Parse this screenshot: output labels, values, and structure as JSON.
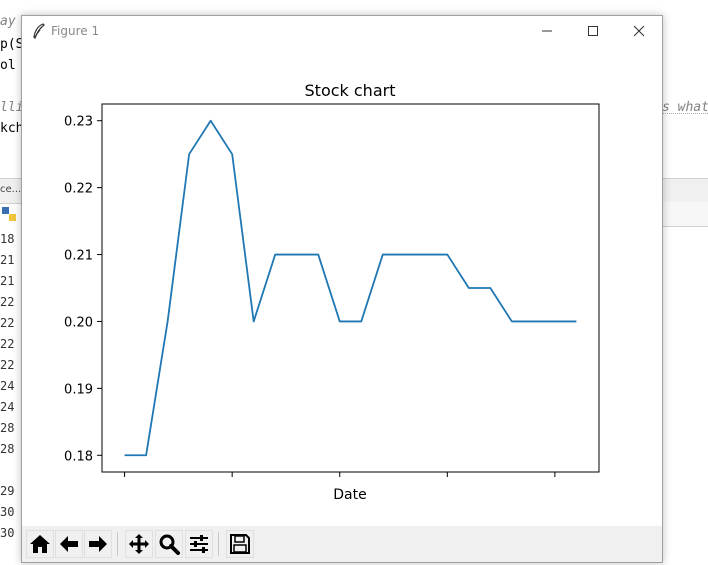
{
  "window": {
    "title": "Figure 1"
  },
  "background": {
    "code_lines": [
      "ay",
      "p(S",
      "ol",
      "lli",
      "kch",
      "s what"
    ],
    "tab_label": "ce...",
    "line_numbers": [
      "18",
      "21",
      "21",
      "22",
      "22",
      "22",
      "22",
      "24",
      "24",
      "28",
      "28",
      "29",
      "30",
      "30"
    ]
  },
  "toolbar": {
    "buttons": [
      "home-icon",
      "back-icon",
      "forward-icon",
      "pan-icon",
      "zoom-icon",
      "configure-icon",
      "save-icon"
    ]
  },
  "chart_data": {
    "type": "line",
    "title": "Stock chart",
    "xlabel": "Date",
    "ylabel": "",
    "x": [
      0,
      1,
      2,
      3,
      4,
      5,
      6,
      7,
      8,
      9,
      10,
      11,
      12,
      13,
      14,
      15,
      16,
      17,
      18,
      19,
      20,
      21
    ],
    "series": [
      {
        "values": [
          0.18,
          0.18,
          0.2,
          0.225,
          0.23,
          0.225,
          0.2,
          0.21,
          0.21,
          0.21,
          0.2,
          0.2,
          0.21,
          0.21,
          0.21,
          0.21,
          0.205,
          0.205,
          0.2,
          0.2,
          0.2,
          0.2
        ],
        "color": "#1f77b4"
      }
    ],
    "ylim": [
      0.1775,
      0.2325
    ],
    "xlim": [
      -1.05,
      22.05
    ],
    "yticks": [
      0.18,
      0.19,
      0.2,
      0.21,
      0.22,
      0.23
    ],
    "ytick_labels": [
      "0.18",
      "0.19",
      "0.20",
      "0.21",
      "0.22",
      "0.23"
    ],
    "xticks": [
      0,
      5,
      10,
      15,
      20
    ],
    "xtick_labels": [
      "",
      "",
      "",
      "",
      ""
    ],
    "grid": false
  }
}
